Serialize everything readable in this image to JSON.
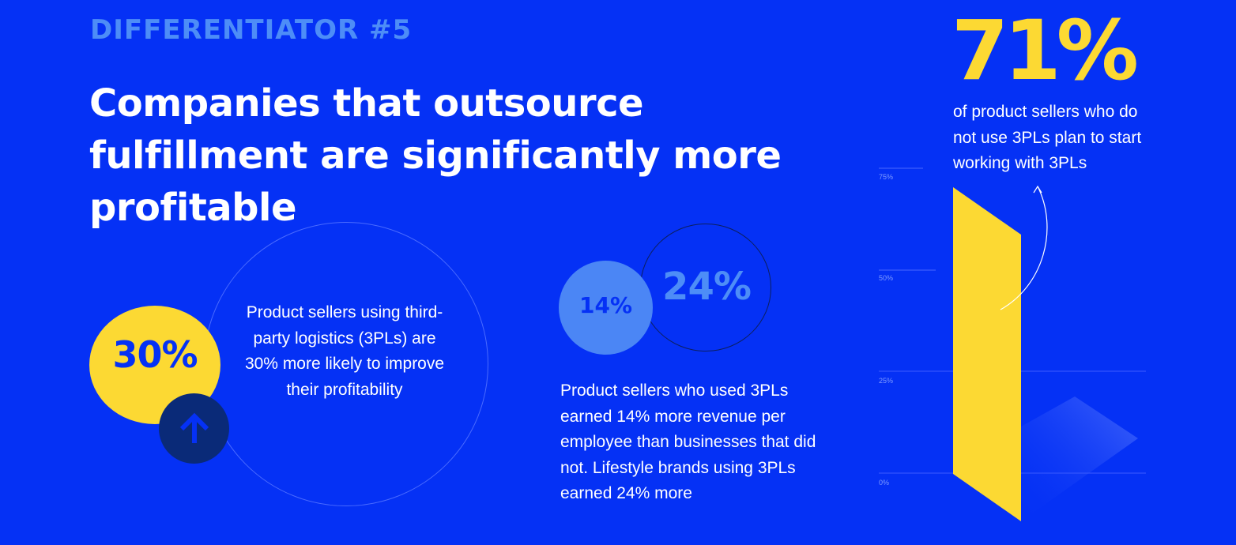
{
  "eyebrow": "DIFFERENTIATOR #5",
  "headline": "Companies that outsource fulfillment are significantly more profitable",
  "stat_30": {
    "value": "30%",
    "text": "Product sellers using third-party logistics (3PLs) are 30% more likely to improve their profitability",
    "icon": "arrow-up-icon"
  },
  "stat_revenue": {
    "value_14": "14%",
    "value_24": "24%",
    "text": "Product sellers who used 3PLs earned 14% more revenue per employee than businesses that did not. Lifestyle brands using 3PLs earned 24% more"
  },
  "stat_71": {
    "value": "71%",
    "text": "of product sellers who do not use 3PLs plan to start working with 3PLs"
  },
  "bar_chart": {
    "ticks": [
      "75%",
      "50%",
      "25%",
      "0%"
    ],
    "bar_value_percent": 71
  },
  "colors": {
    "background": "#0531f5",
    "accent_yellow": "#fcd933",
    "accent_light_blue": "#4b86f5",
    "dark_navy": "#0a2a78"
  }
}
